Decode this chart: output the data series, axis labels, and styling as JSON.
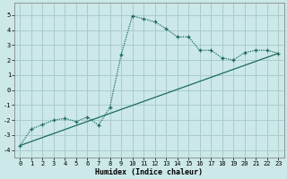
{
  "xlabel": "Humidex (Indice chaleur)",
  "background_color": "#cce8e8",
  "grid_color": "#aacccc",
  "line_color": "#1a6b5a",
  "xlim": [
    -0.5,
    23.5
  ],
  "ylim": [
    -4.5,
    5.8
  ],
  "yticks": [
    -4,
    -3,
    -2,
    -1,
    0,
    1,
    2,
    3,
    4,
    5
  ],
  "xticks": [
    0,
    1,
    2,
    3,
    4,
    5,
    6,
    7,
    8,
    9,
    10,
    11,
    12,
    13,
    14,
    15,
    16,
    17,
    18,
    19,
    20,
    21,
    22,
    23
  ],
  "curve1_x": [
    0,
    1,
    2,
    3,
    4,
    5,
    6,
    7,
    8,
    9,
    10,
    11,
    12,
    13,
    14,
    15,
    16,
    17,
    18,
    19,
    20,
    21,
    22,
    23
  ],
  "curve1_y": [
    -3.7,
    -2.6,
    -2.3,
    -2.0,
    -1.9,
    -2.1,
    -1.8,
    -2.35,
    -1.15,
    2.35,
    4.95,
    4.75,
    4.55,
    4.1,
    3.55,
    3.55,
    2.65,
    2.65,
    2.15,
    2.0,
    2.5,
    2.65,
    2.65,
    2.45
  ],
  "curve2_x": [
    0,
    23
  ],
  "curve2_y": [
    -3.7,
    2.45
  ],
  "tick_fontsize": 5,
  "xlabel_fontsize": 6
}
